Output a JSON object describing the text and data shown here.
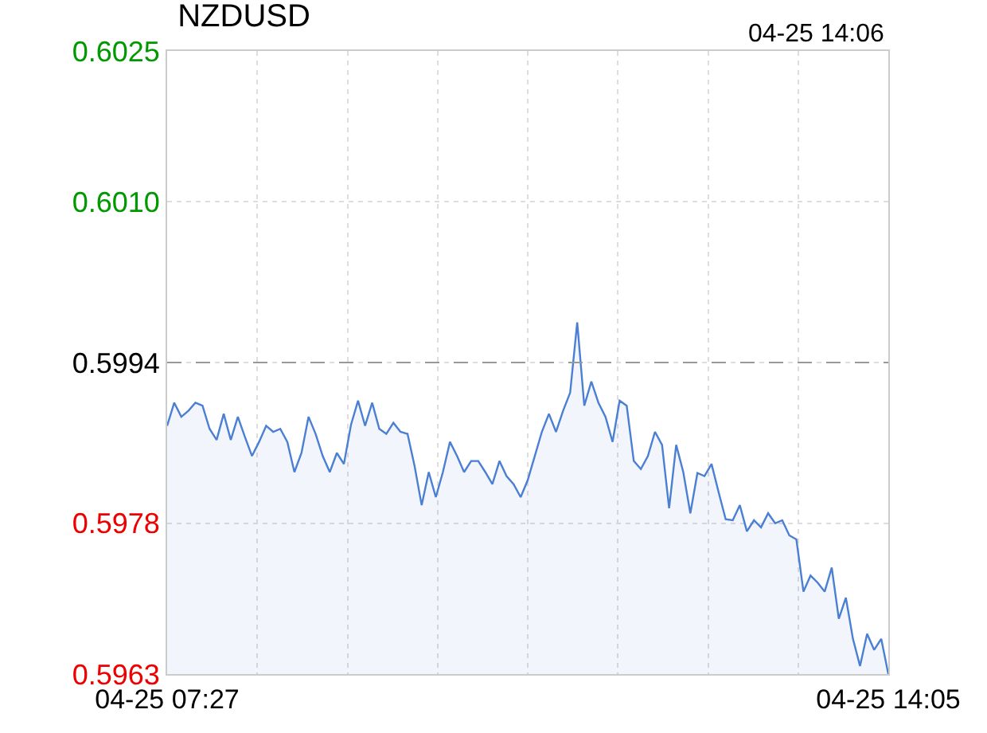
{
  "chart_data": {
    "type": "area",
    "title": "NZDUSD",
    "annotations": [
      "04-25 14:06"
    ],
    "series": [
      {
        "color": "#4a7fd4",
        "values": [
          0.59877,
          0.599,
          0.59886,
          0.59892,
          0.599,
          0.59897,
          0.59874,
          0.59863,
          0.59889,
          0.59863,
          0.59886,
          0.59866,
          0.59847,
          0.59861,
          0.59877,
          0.59871,
          0.59874,
          0.59861,
          0.59831,
          0.5985,
          0.59886,
          0.59869,
          0.59847,
          0.59831,
          0.5985,
          0.59839,
          0.59878,
          0.59902,
          0.59877,
          0.599,
          0.59874,
          0.59869,
          0.5988,
          0.59871,
          0.59869,
          0.59837,
          0.59798,
          0.59831,
          0.59806,
          0.59831,
          0.59861,
          0.59847,
          0.59831,
          0.59842,
          0.59842,
          0.59831,
          0.59819,
          0.59842,
          0.59827,
          0.59819,
          0.59806,
          0.59823,
          0.59847,
          0.59871,
          0.59889,
          0.59871,
          0.59892,
          0.5991,
          0.5998,
          0.59897,
          0.59921,
          0.599,
          0.59886,
          0.59861,
          0.59902,
          0.59897,
          0.59842,
          0.59834,
          0.59847,
          0.59871,
          0.59858,
          0.59795,
          0.59858,
          0.59831,
          0.5979,
          0.5983,
          0.59827,
          0.59839,
          0.59811,
          0.59784,
          0.59783,
          0.59798,
          0.59772,
          0.59783,
          0.59776,
          0.5979,
          0.5978,
          0.59783,
          0.59768,
          0.59764,
          0.59712,
          0.59728,
          0.59721,
          0.59712,
          0.59736,
          0.59685,
          0.59706,
          0.59665,
          0.59638,
          0.5967,
          0.59654,
          0.59665,
          0.5963
        ]
      }
    ],
    "categories": [
      "04-25 07:27",
      null,
      null,
      null,
      null,
      null,
      null,
      null,
      null,
      null,
      null,
      null,
      null,
      null,
      null,
      null,
      null,
      null,
      null,
      null,
      null,
      null,
      null,
      null,
      null,
      null,
      null,
      null,
      null,
      null,
      null,
      null,
      null,
      null,
      null,
      null,
      null,
      null,
      null,
      null,
      null,
      null,
      null,
      null,
      null,
      null,
      null,
      null,
      null,
      null,
      null,
      null,
      null,
      null,
      null,
      null,
      null,
      null,
      null,
      null,
      null,
      null,
      null,
      null,
      null,
      null,
      null,
      null,
      null,
      null,
      null,
      null,
      null,
      null,
      null,
      null,
      null,
      null,
      null,
      null,
      null,
      null,
      null,
      null,
      null,
      null,
      null,
      null,
      null,
      null,
      null,
      null,
      null,
      null,
      null,
      null,
      null,
      null,
      null,
      null,
      null,
      null,
      "04-25 14:05"
    ],
    "ylim": [
      0.5963,
      0.6025
    ],
    "yticks": [
      0.5963,
      0.5978,
      0.5994,
      {
        "value": 0.601,
        "label": "0.6010"
      },
      0.6025
    ],
    "ref_lines": [
      {
        "axis": "y",
        "value": 0.5994,
        "color": "#999999",
        "line_style": "dashed"
      }
    ],
    "grid": true
  }
}
